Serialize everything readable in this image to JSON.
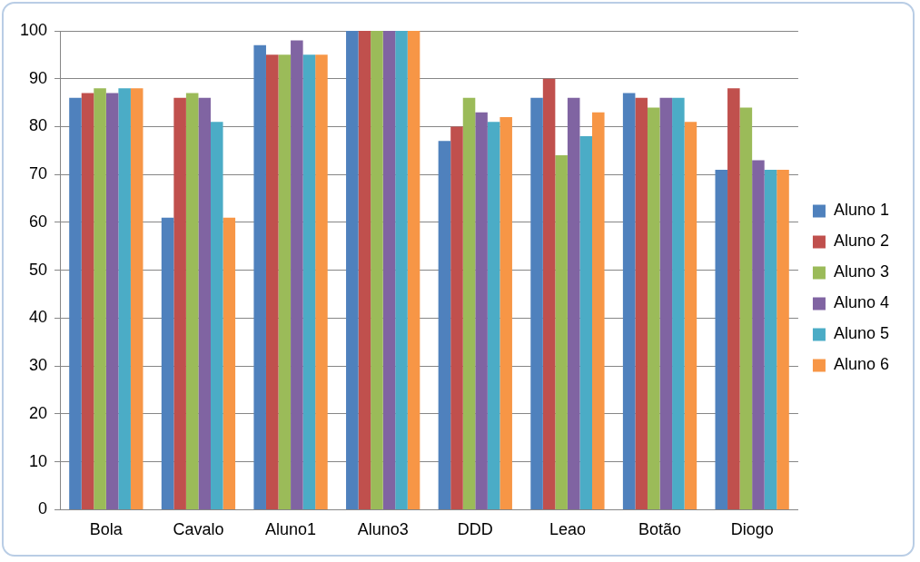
{
  "chart_data": {
    "type": "bar",
    "categories": [
      "Bola",
      "Cavalo",
      "Aluno1",
      "Aluno3",
      "DDD",
      "Leao",
      "Botão",
      "Diogo"
    ],
    "series": [
      {
        "name": "Aluno 1",
        "color": "#4f81bd",
        "values": [
          86,
          61,
          97,
          100,
          77,
          86,
          87,
          71
        ]
      },
      {
        "name": "Aluno 2",
        "color": "#c0504d",
        "values": [
          87,
          86,
          95,
          100,
          80,
          90,
          86,
          88
        ]
      },
      {
        "name": "Aluno 3",
        "color": "#9bbb59",
        "values": [
          88,
          87,
          95,
          100,
          86,
          74,
          84,
          84
        ]
      },
      {
        "name": "Aluno 4",
        "color": "#8064a2",
        "values": [
          87,
          86,
          98,
          100,
          83,
          86,
          86,
          73
        ]
      },
      {
        "name": "Aluno 5",
        "color": "#4bacc6",
        "values": [
          88,
          81,
          95,
          100,
          81,
          78,
          86,
          71
        ]
      },
      {
        "name": "Aluno 6",
        "color": "#f79646",
        "values": [
          88,
          61,
          95,
          100,
          82,
          83,
          81,
          71
        ]
      }
    ],
    "ylim": [
      0,
      100
    ],
    "yticks": [
      0,
      10,
      20,
      30,
      40,
      50,
      60,
      70,
      80,
      90,
      100
    ],
    "grid": "y",
    "legend": "right"
  }
}
